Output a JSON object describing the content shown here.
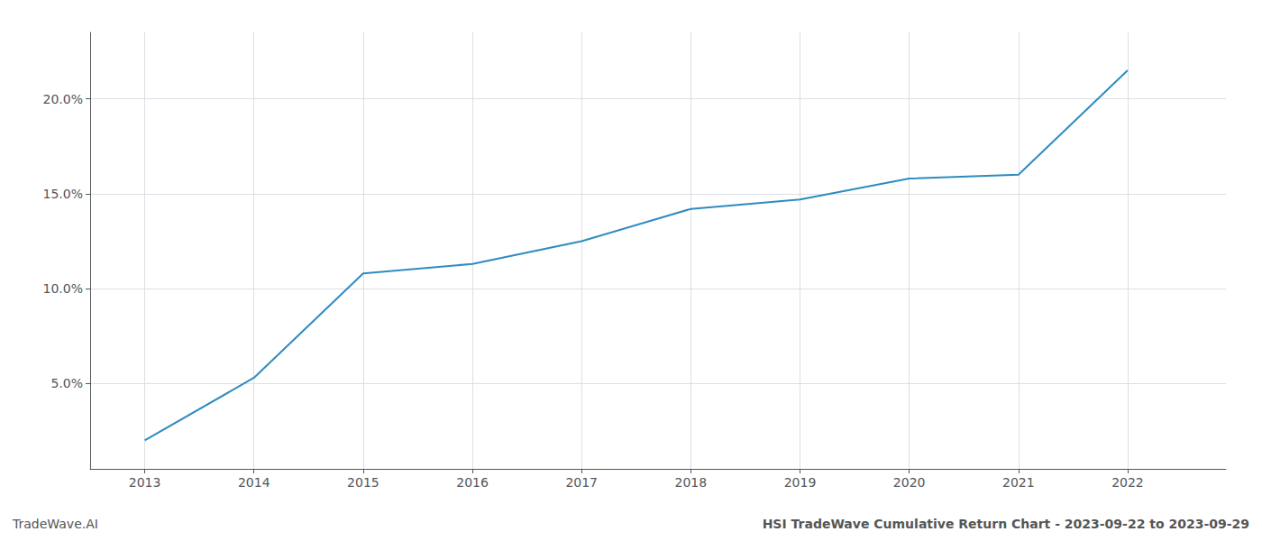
{
  "chart_data": {
    "type": "line",
    "x": [
      2013,
      2014,
      2015,
      2016,
      2017,
      2018,
      2019,
      2020,
      2021,
      2022
    ],
    "values": [
      2.0,
      5.3,
      10.8,
      11.3,
      12.5,
      14.2,
      14.7,
      15.8,
      16.0,
      21.5
    ],
    "color": "#2e8bc0",
    "xlim": [
      2012.5,
      2022.9
    ],
    "xticks": [
      2013,
      2014,
      2015,
      2016,
      2017,
      2018,
      2019,
      2020,
      2021,
      2022
    ],
    "ylim": [
      0.5,
      23.5
    ],
    "yticks": [
      {
        "value": 5.0,
        "label": "5.0%"
      },
      {
        "value": 10.0,
        "label": "10.0%"
      },
      {
        "value": 15.0,
        "label": "15.0%"
      },
      {
        "value": 20.0,
        "label": "20.0%"
      }
    ],
    "grid": true,
    "annotations": [
      "TradeWave.AI",
      "HSI TradeWave Cumulative Return Chart - 2023-09-22 to 2023-09-29"
    ]
  }
}
